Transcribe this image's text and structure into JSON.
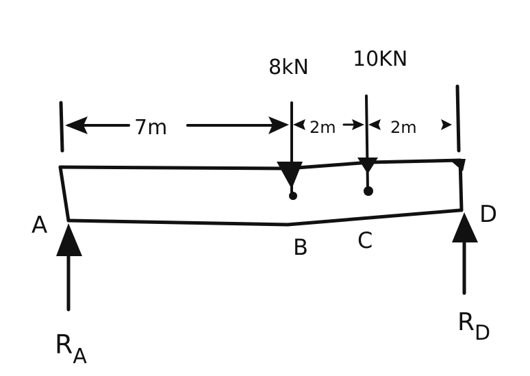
{
  "loads": {
    "b_load_label": "8kN",
    "c_load_label": "10KN"
  },
  "dimensions": {
    "ab_label": "7m",
    "bc_label": "2m",
    "cd_label": "2m"
  },
  "points": {
    "a": "A",
    "b": "B",
    "c": "C",
    "d": "D"
  },
  "reactions": {
    "ra_main": "R",
    "ra_sub": "A",
    "rd_main": "R",
    "rd_sub": "D"
  },
  "colors": {
    "ink": "#111111",
    "paper": "#ffffff"
  }
}
